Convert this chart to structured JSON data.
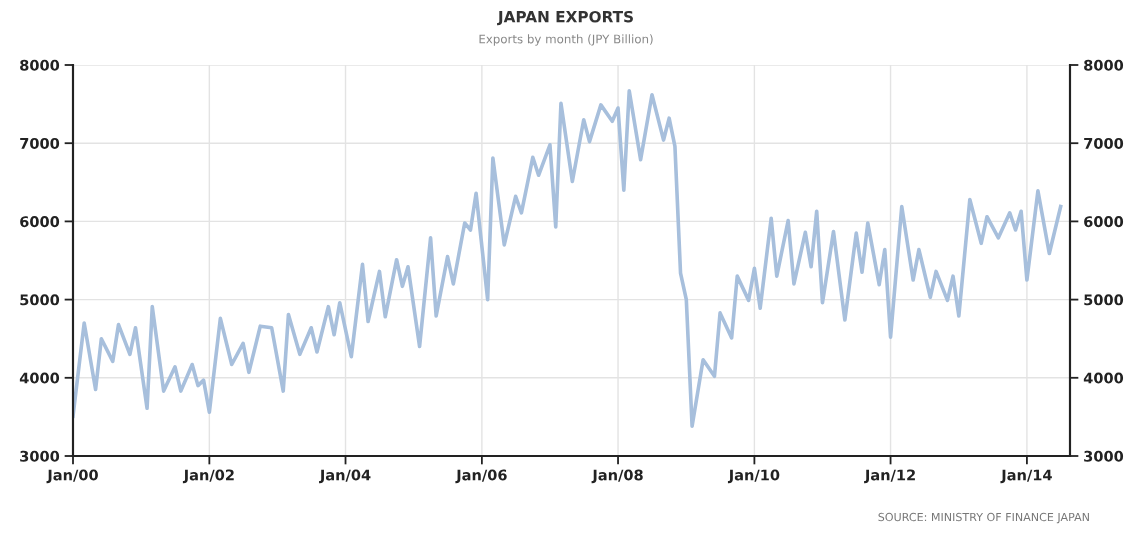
{
  "chart_data": {
    "type": "line",
    "title": "JAPAN EXPORTS",
    "subtitle": "Exports by month (JPY Billion)",
    "annotations": [
      "SOURCE: MINISTRY OF FINANCE JAPAN"
    ],
    "x": [
      "2000-01",
      "2000-03",
      "2000-05",
      "2000-06",
      "2000-08",
      "2000-09",
      "2000-11",
      "2000-12",
      "2001-02",
      "2001-03",
      "2001-05",
      "2001-07",
      "2001-08",
      "2001-10",
      "2001-11",
      "2001-12",
      "2002-01",
      "2002-03",
      "2002-05",
      "2002-07",
      "2002-08",
      "2002-10",
      "2002-12",
      "2003-02",
      "2003-03",
      "2003-05",
      "2003-07",
      "2003-08",
      "2003-10",
      "2003-11",
      "2003-12",
      "2004-02",
      "2004-04",
      "2004-05",
      "2004-07",
      "2004-08",
      "2004-10",
      "2004-11",
      "2004-12",
      "2005-02",
      "2005-04",
      "2005-05",
      "2005-07",
      "2005-08",
      "2005-10",
      "2005-11",
      "2005-12",
      "2006-02",
      "2006-03",
      "2006-05",
      "2006-07",
      "2006-08",
      "2006-10",
      "2006-11",
      "2007-01",
      "2007-02",
      "2007-03",
      "2007-05",
      "2007-07",
      "2007-08",
      "2007-10",
      "2007-12",
      "2008-01",
      "2008-02",
      "2008-03",
      "2008-05",
      "2008-07",
      "2008-09",
      "2008-10",
      "2008-11",
      "2008-12",
      "2009-01",
      "2009-02",
      "2009-04",
      "2009-06",
      "2009-07",
      "2009-09",
      "2009-10",
      "2009-12",
      "2010-01",
      "2010-02",
      "2010-04",
      "2010-05",
      "2010-07",
      "2010-08",
      "2010-10",
      "2010-11",
      "2010-12",
      "2011-01",
      "2011-03",
      "2011-05",
      "2011-07",
      "2011-08",
      "2011-09",
      "2011-11",
      "2011-12",
      "2012-01",
      "2012-03",
      "2012-05",
      "2012-06",
      "2012-08",
      "2012-09",
      "2012-11",
      "2012-12",
      "2013-01",
      "2013-03",
      "2013-05",
      "2013-06",
      "2013-08",
      "2013-10",
      "2013-11",
      "2013-12",
      "2014-01",
      "2014-03",
      "2014-05",
      "2014-07"
    ],
    "series": [
      {
        "color": "#a7bfdc",
        "values": [
          3510,
          4700,
          3850,
          4500,
          4210,
          4680,
          4300,
          4640,
          3610,
          4910,
          3830,
          4140,
          3830,
          4170,
          3900,
          3970,
          3560,
          4760,
          4170,
          4440,
          4070,
          4660,
          4640,
          3830,
          4810,
          4300,
          4640,
          4330,
          4910,
          4550,
          4960,
          4270,
          5450,
          4720,
          5360,
          4780,
          5510,
          5170,
          5420,
          4400,
          5790,
          4790,
          5550,
          5200,
          5980,
          5890,
          6360,
          5000,
          6810,
          5700,
          6320,
          6110,
          6820,
          6590,
          6980,
          5930,
          7510,
          6510,
          7300,
          7020,
          7490,
          7280,
          7450,
          6400,
          7670,
          6790,
          7620,
          7040,
          7320,
          6960,
          5340,
          5000,
          3380,
          4230,
          4020,
          4830,
          4510,
          5300,
          4990,
          5400,
          4890,
          6040,
          5300,
          6010,
          5200,
          5860,
          5420,
          6130,
          4960,
          5870,
          4740,
          5850,
          5350,
          5980,
          5190,
          5640,
          4520,
          6190,
          5250,
          5640,
          5030,
          5360,
          4990,
          5300,
          4790,
          6280,
          5720,
          6060,
          5790,
          6110,
          5890,
          6130,
          5250,
          6390,
          5590,
          6190
        ]
      }
    ],
    "xlim": [
      "2000-01-01",
      "2014-08-20"
    ],
    "xticks": [
      {
        "value": "2000-01",
        "label": "Jan/00"
      },
      {
        "value": "2002-01",
        "label": "Jan/02"
      },
      {
        "value": "2004-01",
        "label": "Jan/04"
      },
      {
        "value": "2006-01",
        "label": "Jan/06"
      },
      {
        "value": "2008-01",
        "label": "Jan/08"
      },
      {
        "value": "2010-01",
        "label": "Jan/10"
      },
      {
        "value": "2012-01",
        "label": "Jan/12"
      },
      {
        "value": "2014-01",
        "label": "Jan/14"
      }
    ],
    "ylim": [
      3000,
      8000
    ],
    "yticks": [
      3000,
      4000,
      5000,
      6000,
      7000,
      8000
    ],
    "y2lim": [
      3000,
      8000
    ],
    "y2ticks": [
      3000,
      4000,
      5000,
      6000,
      7000,
      8000
    ],
    "grid": true,
    "legend": false,
    "marker": "none",
    "line_style": "solid"
  }
}
